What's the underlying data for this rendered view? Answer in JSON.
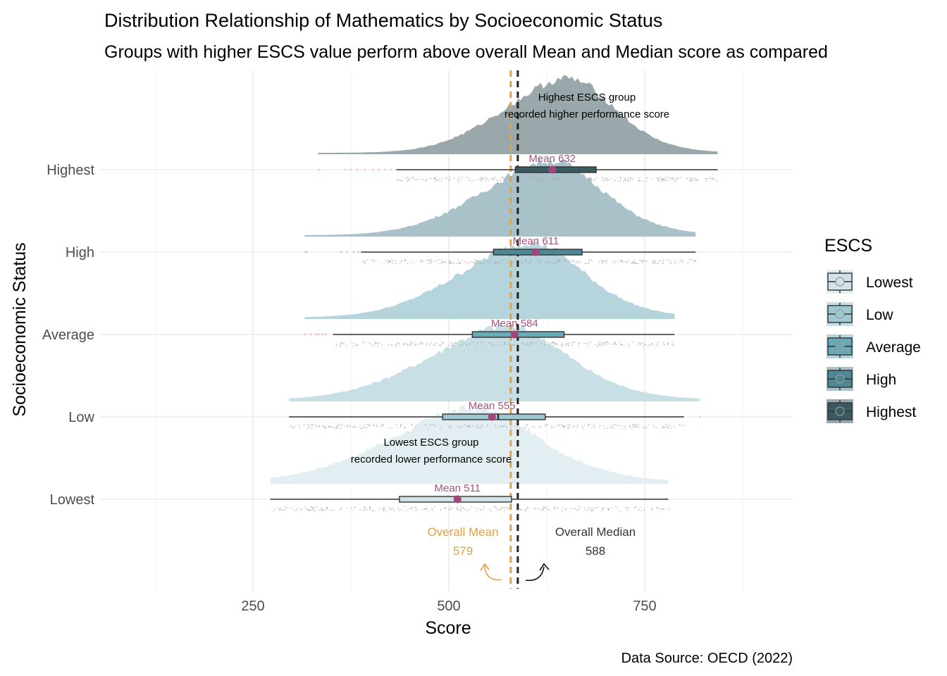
{
  "chart_data": {
    "type": "raincloud",
    "title": "Distribution Relationship of Mathematics by Socioeconomic Status",
    "subtitle": "Groups with higher ESCS value perform above overall Mean and Median score as compared",
    "xlabel": "Score",
    "ylabel": "Socioeconomic Status",
    "caption": "Data Source: OECD (2022)",
    "xlim": [
      80,
      940
    ],
    "xticks": [
      250,
      500,
      750
    ],
    "grid": true,
    "legend": {
      "title": "ESCS",
      "position": "right"
    },
    "overall_mean": {
      "label": "Overall Mean",
      "value": 579,
      "color": "#e0a24a"
    },
    "overall_median": {
      "label": "Overall Median",
      "value": 588,
      "color": "#222222"
    },
    "annotations": [
      {
        "group": "Highest",
        "lines": [
          "Highest ESCS group",
          "recorded higher performance score"
        ]
      },
      {
        "group": "Lowest",
        "lines": [
          "Lowest ESCS group",
          "recorded lower performance score"
        ]
      }
    ],
    "series": [
      {
        "name": "Lowest",
        "color": "#e2eef1",
        "box_color": "#d1e3e8",
        "mean": 511,
        "mean_label": "Mean 511",
        "q1": 437,
        "median": 508,
        "q3": 580,
        "whisker_low": 272,
        "whisker_high": 780,
        "range": [
          272,
          780
        ],
        "outliers": []
      },
      {
        "name": "Low",
        "color": "#c8dfe5",
        "box_color": "#9ec8d1",
        "mean": 555,
        "mean_label": "Mean 555",
        "q1": 492,
        "median": 563,
        "q3": 623,
        "whisker_low": 296,
        "whisker_high": 800,
        "range": [
          296,
          820
        ],
        "outliers": [
          820
        ]
      },
      {
        "name": "Average",
        "color": "#b6d4dc",
        "box_color": "#6aaab8",
        "mean": 584,
        "mean_label": "Mean 584",
        "q1": 530,
        "median": 585,
        "q3": 647,
        "whisker_low": 352,
        "whisker_high": 788,
        "range": [
          316,
          788
        ],
        "outliers": [
          316,
          323,
          330,
          333,
          338,
          342
        ]
      },
      {
        "name": "High",
        "color": "#a9c2ca",
        "box_color": "#4e8895",
        "mean": 611,
        "mean_label": "Mean 611",
        "q1": 557,
        "median": 610,
        "q3": 670,
        "whisker_low": 388,
        "whisker_high": 815,
        "range": [
          316,
          815
        ],
        "outliers": [
          316,
          318,
          362,
          370,
          378,
          384
        ]
      },
      {
        "name": "Highest",
        "color": "#9aa8ac",
        "box_color": "#3a5a62",
        "mean": 632,
        "mean_label": "Mean 632",
        "q1": 585,
        "median": 631,
        "q3": 688,
        "whisker_low": 433,
        "whisker_high": 843,
        "range": [
          333,
          843
        ],
        "outliers": [
          333,
          367,
          374,
          382,
          392,
          402,
          410,
          418,
          426
        ]
      }
    ]
  }
}
